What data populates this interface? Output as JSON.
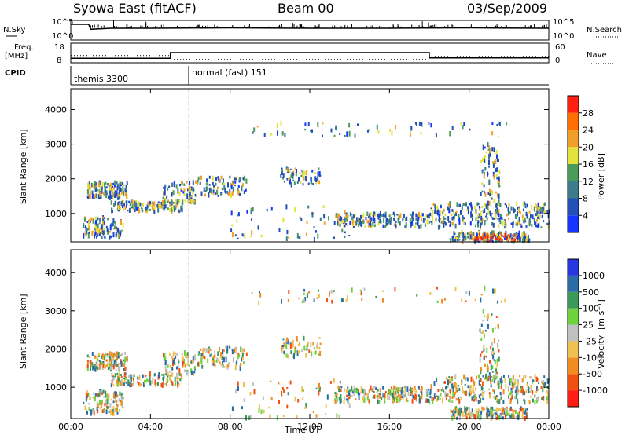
{
  "header": {
    "title": "Syowa East (fitACF)",
    "beam": "Beam 00",
    "date": "03/Sep/2009"
  },
  "colors": {
    "white": "#ffffff",
    "black": "#000000",
    "gap_line": "#c8c8c8"
  },
  "chart_data": [
    {
      "type": "line",
      "panel": "noise",
      "left_label": "N.Sky",
      "right_label": "N.Search",
      "left_ticks": [
        "10^5",
        "10^0"
      ],
      "right_ticks": [
        "10^5",
        "10^0"
      ],
      "x": [
        0,
        0.9,
        1.0,
        2,
        4,
        8,
        12,
        16,
        20,
        24
      ],
      "values": [
        0.8,
        0.8,
        0.55,
        0.6,
        0.6,
        0.62,
        0.6,
        0.6,
        0.62,
        0.6
      ]
    },
    {
      "type": "line",
      "panel": "frequency",
      "left_label": "Freq.",
      "left_unit": "[MHz]",
      "right_label": "Nave",
      "left_ticks": [
        "18",
        "8"
      ],
      "right_ticks": [
        "60",
        "0"
      ],
      "freq_x": [
        0,
        5,
        5,
        18,
        18,
        24
      ],
      "freq_y": [
        10.3,
        10.3,
        13.2,
        13.2,
        10.5,
        10.5
      ],
      "nave_x": [
        0,
        5,
        5,
        18,
        18,
        24
      ],
      "nave_y": [
        22,
        22,
        10,
        10,
        20,
        20
      ]
    },
    {
      "type": "table",
      "panel": "cpid",
      "label": "CPID",
      "segments": [
        {
          "start": 0,
          "text": "themis 3300"
        },
        {
          "start": 6,
          "text": "normal (fast) 151"
        }
      ]
    },
    {
      "type": "heatmap",
      "panel": "power",
      "ylabel": "Slant Range [km]",
      "yticks": [
        1000,
        2000,
        3000,
        4000
      ],
      "ylim": [
        180,
        4600
      ],
      "cbar_label": "Power [dB]",
      "cbar_ticks": [
        "4",
        "8",
        "12",
        "16",
        "20",
        "24",
        "28"
      ],
      "cbar_colors": [
        "#1434ff",
        "#2250b4",
        "#3c7d8c",
        "#4a9a5a",
        "#e2e23c",
        "#f0a028",
        "#ff6e00",
        "#ff2010"
      ]
    },
    {
      "type": "heatmap",
      "panel": "velocity",
      "ylabel": "Slant Range [km]",
      "yticks": [
        1000,
        2000,
        3000,
        4000
      ],
      "ylim": [
        180,
        4600
      ],
      "xlabel": "Time UT",
      "xticks": [
        "00:00",
        "04:00",
        "08:00",
        "12:00",
        "16:00",
        "20:00",
        "00:00"
      ],
      "xlim": [
        0,
        24
      ],
      "cbar_label": "Velocity",
      "cbar_unit": "[m s⁻¹]",
      "cbar_ticks": [
        "1000",
        "500",
        "100",
        "25",
        "-25",
        "-100",
        "-500",
        "-1000"
      ],
      "cbar_colors": [
        "#2838e0",
        "#2a6ca8",
        "#3a9a5a",
        "#6ed23c",
        "#c0c0c0",
        "#f0c050",
        "#f08c20",
        "#f05010",
        "#ff1e14"
      ]
    }
  ]
}
